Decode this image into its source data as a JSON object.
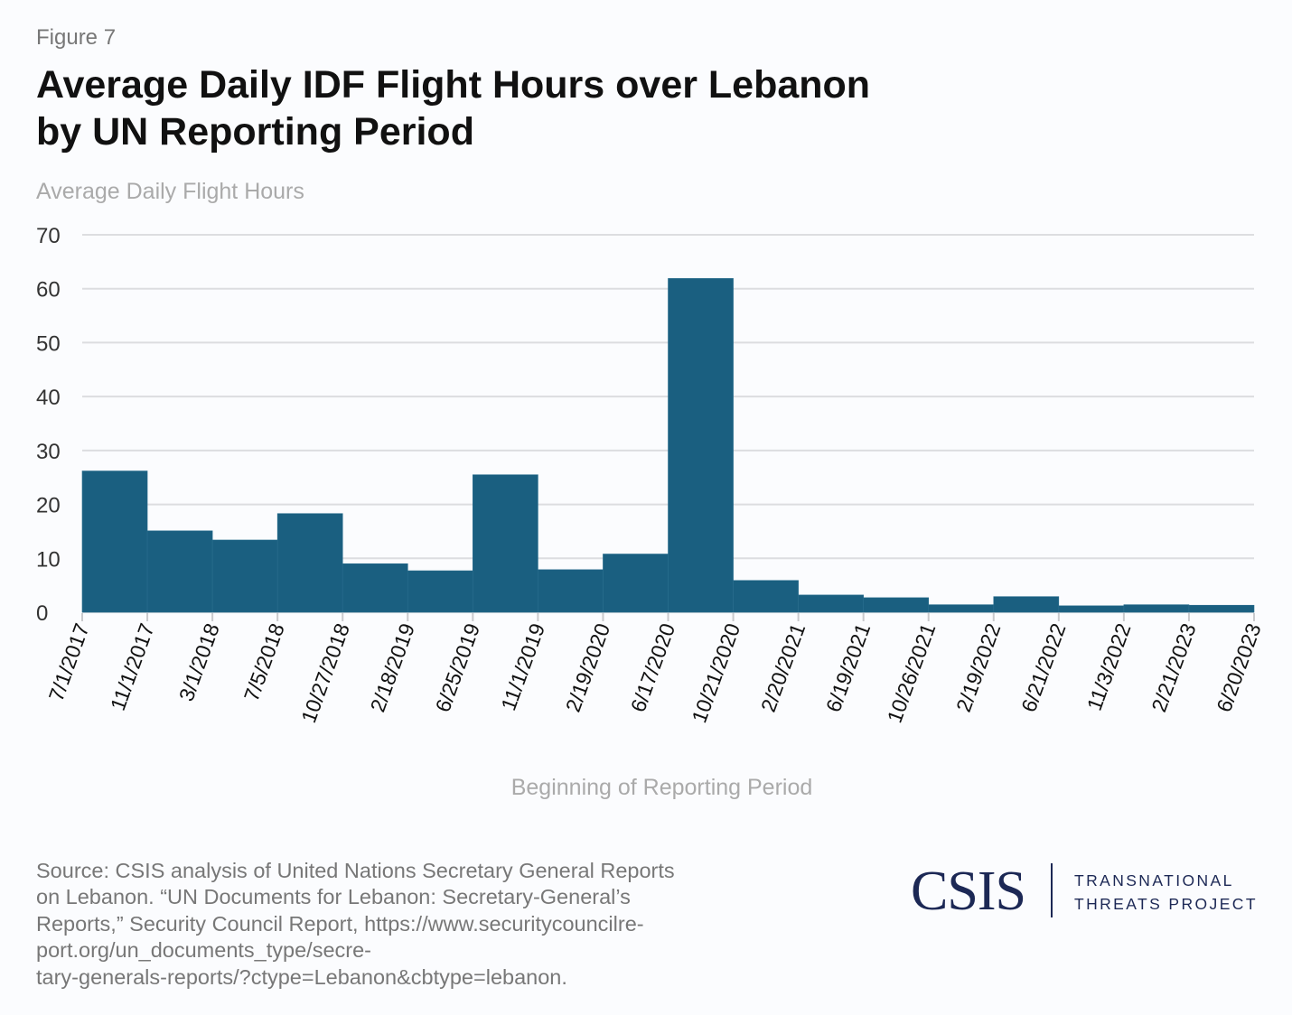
{
  "figure_label": "Figure 7",
  "title_line1": "Average Daily IDF Flight Hours over Lebanon",
  "title_line2": "by UN Reporting Period",
  "source": {
    "lines": [
      "Source: CSIS analysis of United Nations Secretary General Reports",
      "on Lebanon. “UN Documents for Lebanon: Secretary-General’s",
      "Reports,” Security Council Report, https://www.securitycouncilre-",
      "port.org/un_documents_type/secre-",
      "tary-generals-reports/?ctype=Lebanon&cbtype=lebanon."
    ]
  },
  "logo": {
    "org": "CSIS",
    "project_line1": "TRANSNATIONAL",
    "project_line2": "THREATS PROJECT",
    "color": "#1c2855"
  },
  "chart_data": {
    "type": "bar",
    "title": "Average Daily IDF Flight Hours over Lebanon by UN Reporting Period",
    "xlabel": "Beginning of Reporting Period",
    "ylabel": "Average Daily Flight Hours",
    "ylim": [
      0,
      70
    ],
    "yticks": [
      0,
      10,
      20,
      30,
      40,
      50,
      60,
      70
    ],
    "grid": true,
    "bar_color": "#1a5f80",
    "tick_labels": [
      "7/1/2017",
      "11/1/2017",
      "3/1/2018",
      "7/5/2018",
      "10/27/2018",
      "2/18/2019",
      "6/25/2019",
      "11/1/2019",
      "2/19/2020",
      "6/17/2020",
      "10/21/2020",
      "2/20/2021",
      "6/19/2021",
      "10/26/2021",
      "2/19/2022",
      "6/21/2022",
      "11/3/2022",
      "2/21/2023",
      "6/20/2023"
    ],
    "categories": [
      "7/1/2017",
      "11/1/2017",
      "3/1/2018",
      "7/5/2018",
      "10/27/2018",
      "2/18/2019",
      "6/25/2019",
      "11/1/2019",
      "2/19/2020",
      "6/17/2020",
      "10/21/2020",
      "2/20/2021",
      "6/19/2021",
      "10/26/2021",
      "2/19/2022",
      "6/21/2022",
      "11/3/2022",
      "2/21/2023"
    ],
    "values": [
      26.2,
      15.1,
      13.4,
      18.3,
      9.0,
      7.7,
      25.5,
      7.9,
      10.8,
      61.9,
      5.9,
      3.2,
      2.7,
      1.4,
      2.9,
      1.2,
      1.4,
      1.3
    ]
  }
}
